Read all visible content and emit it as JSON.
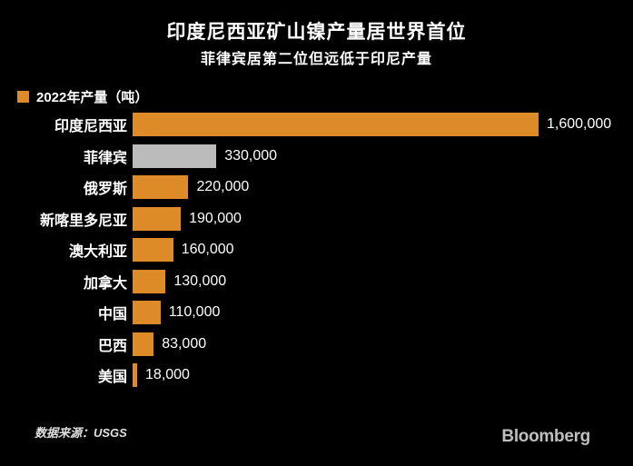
{
  "chart_data": {
    "type": "bar",
    "orientation": "horizontal",
    "title": "印度尼西亚矿山镍产量居世界首位",
    "subtitle": "菲律宾居第二位但远低于印尼产量",
    "legend_label": "2022年产量（吨）",
    "categories": [
      "印度尼西亚",
      "菲律宾",
      "俄罗斯",
      "新喀里多尼亚",
      "澳大利亚",
      "加拿大",
      "中国",
      "巴西",
      "美国"
    ],
    "values": [
      1600000,
      330000,
      220000,
      190000,
      160000,
      130000,
      110000,
      83000,
      18000
    ],
    "value_labels": [
      "1,600,000",
      "330,000",
      "220,000",
      "190,000",
      "160,000",
      "130,000",
      "110,000",
      "83,000",
      "18,000"
    ],
    "xlim": [
      0,
      1600000
    ],
    "grid": false,
    "legend_position": "top-left",
    "bar_colors": [
      "#DD8A28",
      "#BBBBBB",
      "#DD8A28",
      "#DD8A28",
      "#DD8A28",
      "#DD8A28",
      "#DD8A28",
      "#DD8A28",
      "#DD8A28"
    ]
  },
  "footer": {
    "source": "数据来源：USGS",
    "brand": "Bloomberg"
  },
  "colors": {
    "bg": "#000000",
    "accent": "#DD8A28",
    "muted_bar": "#BBBBBB",
    "text": "#FFFFFF",
    "source_text": "#E0E0E0",
    "brand_text": "#BFBFBF"
  }
}
